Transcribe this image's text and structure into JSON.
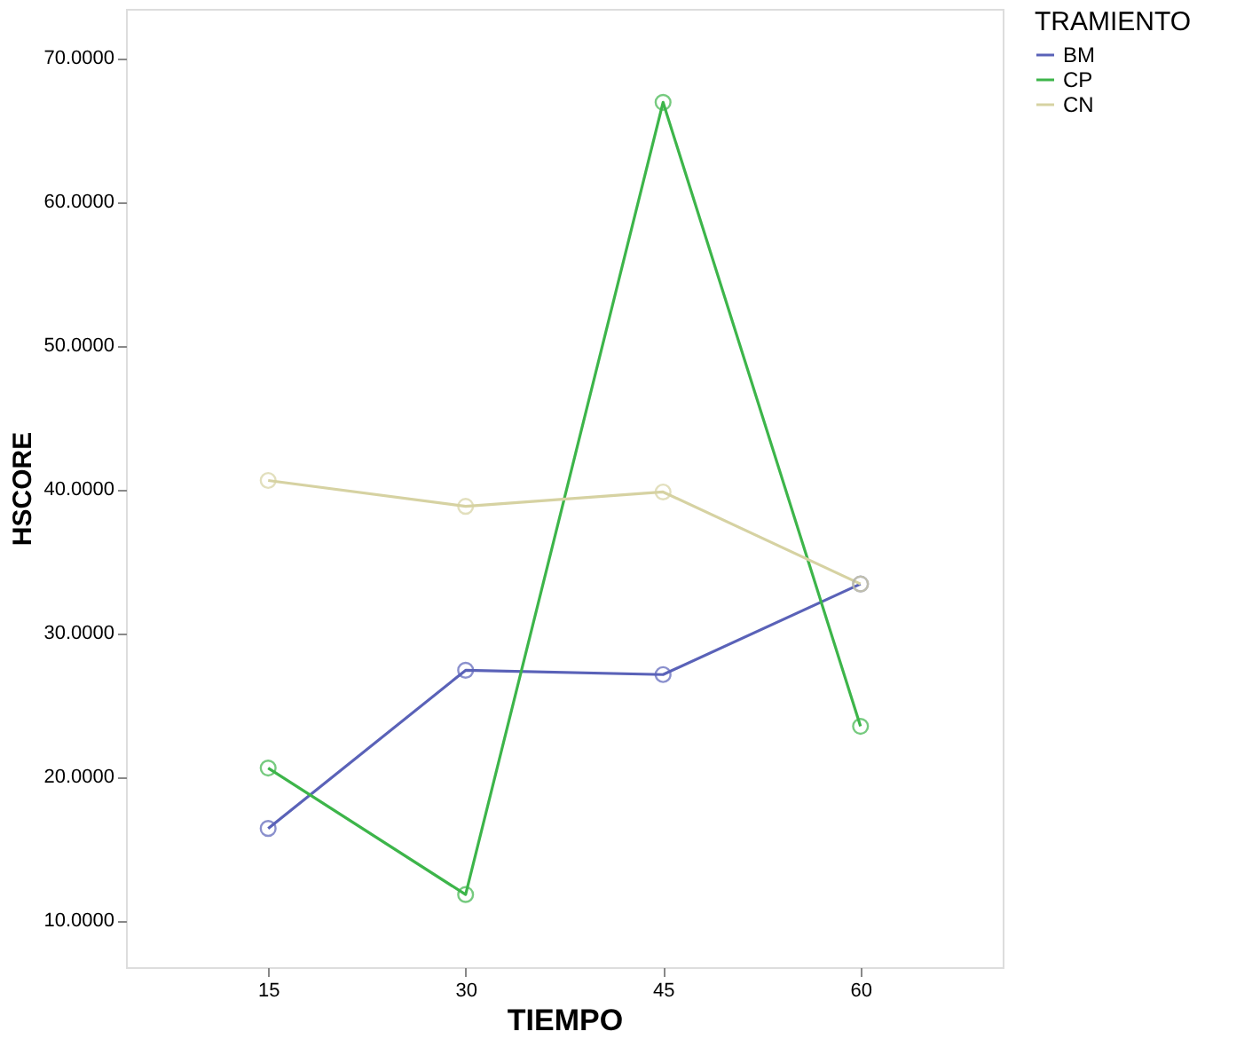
{
  "chart_data": {
    "type": "line",
    "xlabel": "TIEMPO",
    "ylabel": "HSCORE",
    "legend_title": "TRAMIENTO",
    "categories": [
      "15",
      "30",
      "45",
      "60"
    ],
    "series": [
      {
        "name": "BM",
        "color": "#5a62b8",
        "values": [
          16.4,
          27.4,
          27.1,
          33.4
        ]
      },
      {
        "name": "CP",
        "color": "#3db54a",
        "values": [
          20.6,
          11.8,
          66.9,
          23.5
        ]
      },
      {
        "name": "CN",
        "color": "#d6d2a2",
        "values": [
          40.6,
          38.8,
          39.8,
          33.4
        ]
      }
    ],
    "ylim": [
      6.75,
      73.4
    ],
    "yticks": [
      {
        "value": 10,
        "label": "10.0000"
      },
      {
        "value": 20,
        "label": "20.0000"
      },
      {
        "value": 30,
        "label": "30.0000"
      },
      {
        "value": 40,
        "label": "40.0000"
      },
      {
        "value": 50,
        "label": "50.0000"
      },
      {
        "value": 60,
        "label": "60.0000"
      },
      {
        "value": 70,
        "label": "70.0000"
      }
    ],
    "marker": "circle",
    "line_style": "solid",
    "grid": false,
    "legend": "right"
  }
}
